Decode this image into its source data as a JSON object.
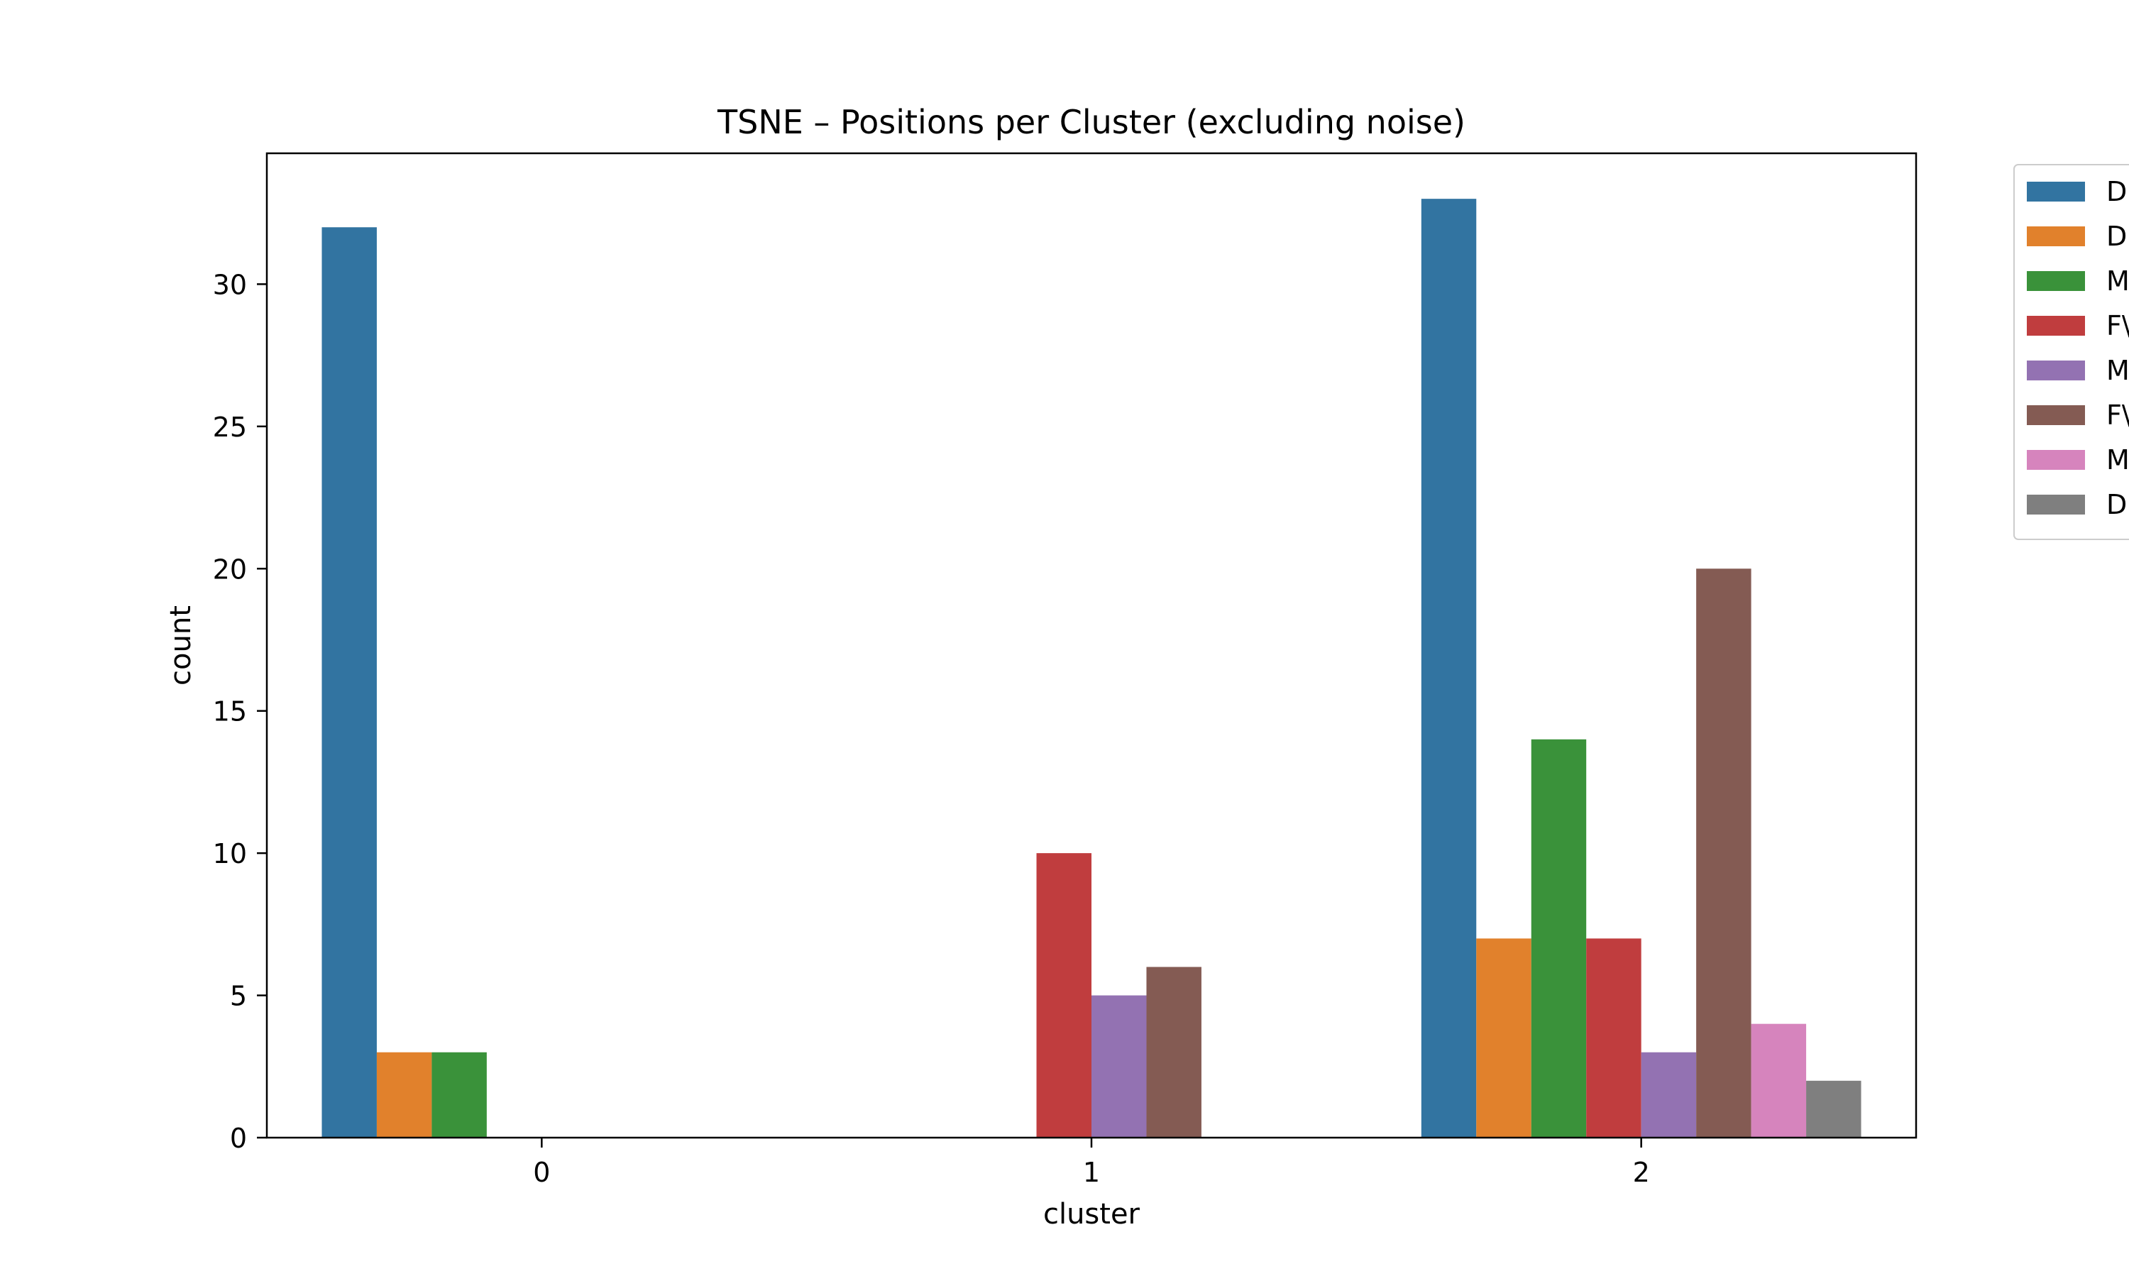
{
  "chart_data": {
    "type": "bar",
    "title": "TSNE – Positions per Cluster (excluding noise)",
    "xlabel": "cluster",
    "ylabel": "count",
    "categories": [
      "0",
      "1",
      "2"
    ],
    "ylim": [
      0,
      34.6
    ],
    "yticks": [
      0,
      5,
      10,
      15,
      20,
      25,
      30
    ],
    "legend_placement": "outside-top-right",
    "series": [
      {
        "name": "D",
        "color": "#3274a1",
        "values": [
          32,
          null,
          33
        ]
      },
      {
        "name": "D",
        "color": "#e1812c",
        "values": [
          3,
          null,
          7
        ]
      },
      {
        "name": "M",
        "color": "#3a923a",
        "values": [
          3,
          null,
          14
        ]
      },
      {
        "name": "F\\",
        "color": "#c03d3e",
        "values": [
          null,
          10,
          7
        ]
      },
      {
        "name": "M",
        "color": "#9372b2",
        "values": [
          null,
          5,
          3
        ]
      },
      {
        "name": "F\\",
        "color": "#845b53",
        "values": [
          null,
          6,
          20
        ]
      },
      {
        "name": "M",
        "color": "#d684bd",
        "values": [
          null,
          null,
          4
        ]
      },
      {
        "name": "D",
        "color": "#7f7f7f",
        "values": [
          null,
          null,
          2
        ]
      }
    ]
  }
}
